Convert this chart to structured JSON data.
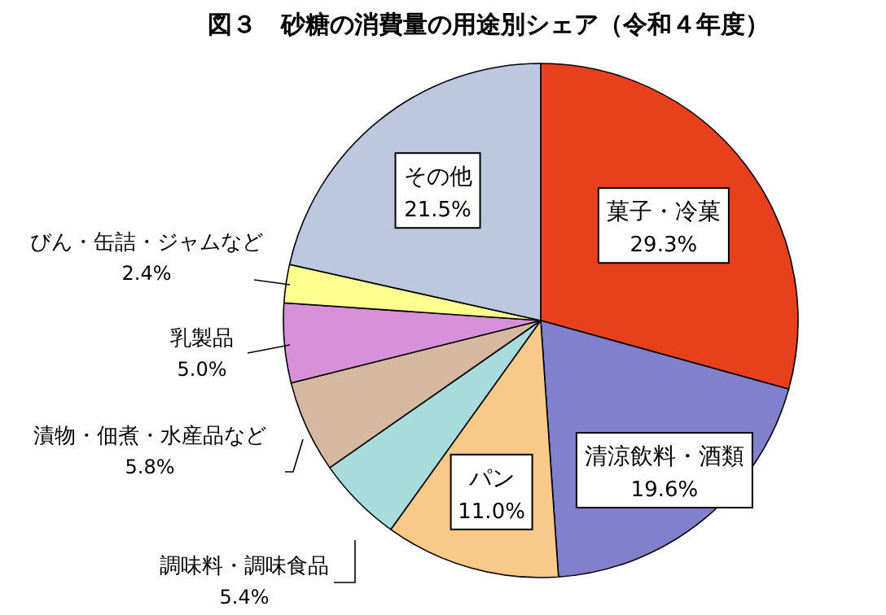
{
  "chart_data": {
    "type": "pie",
    "title": "図３　砂糖の消費量の用途別シェア（令和４年度）",
    "categories": [
      "菓子・冷菓",
      "清涼飲料・酒類",
      "パン",
      "調味料・調味食品",
      "漬物・佃煮・水産品など",
      "乳製品",
      "びん・缶詰・ジャムなど",
      "その他"
    ],
    "values": [
      29.3,
      19.6,
      11.0,
      5.4,
      5.8,
      5.0,
      2.4,
      21.5
    ],
    "value_labels": [
      "29.3%",
      "19.6%",
      "11.0%",
      "5.4%",
      "5.8%",
      "5.0%",
      "2.4%",
      "21.5%"
    ],
    "colors": [
      "#e8401c",
      "#8080cc",
      "#f9c987",
      "#a8dcdc",
      "#d4b8a0",
      "#d890d8",
      "#ffff90",
      "#bcc8e0"
    ]
  }
}
